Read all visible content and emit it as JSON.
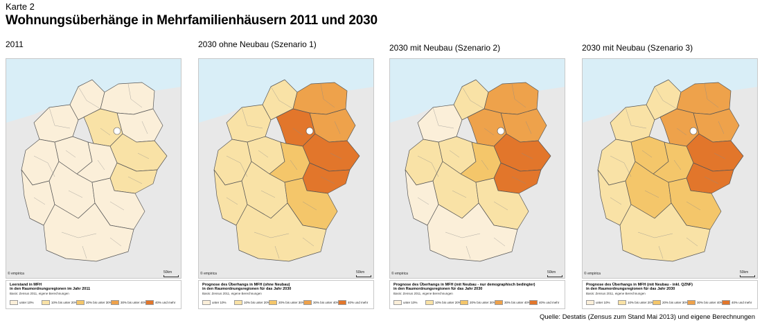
{
  "header": {
    "kicker": "Karte 2",
    "title": "Wohnungsüberhänge in Mehrfamilienhäusern 2011 und 2030"
  },
  "colors": {
    "sea": "#d9eef7",
    "neighbor": "#e6e6e6",
    "region_border": "#8a8a8a",
    "state_border": "#555555",
    "class_0": "#fbefd9",
    "class_1": "#f9e2a6",
    "class_2": "#f4c66a",
    "class_3": "#eea24b",
    "class_4": "#e2762b"
  },
  "legend_classes": [
    {
      "label": "unter 10%",
      "color": "#fbefd9"
    },
    {
      "label": "10% bis unter 20%",
      "color": "#f9e2a6"
    },
    {
      "label": "20% bis unter 30%",
      "color": "#f4c66a"
    },
    {
      "label": "30% bis unter 40%",
      "color": "#eea24b"
    },
    {
      "label": "40% und mehr",
      "color": "#e2762b"
    }
  ],
  "maps": [
    {
      "label": "2011",
      "credit": "© empirica",
      "scale": "50km",
      "legend_title_1": "Leerstand in MFH",
      "legend_title_2": "in den Raumordnungsregionen im Jahr 2011",
      "legend_basis": "Basis: Zensus 2011, eigene Berechnungen",
      "region_classes": {
        "north_west": 0,
        "north": 0,
        "north_east_coast": 0,
        "east_north": 0,
        "west": 0,
        "centre_west": 0,
        "berlin_area": 1,
        "east_centre": 1,
        "east_south": 1,
        "centre": 0,
        "south_west": 0,
        "south_centre": 0,
        "south_east": 0,
        "south": 0
      }
    },
    {
      "label": "2030 ohne Neubau (Szenario 1)",
      "credit": "© empirica",
      "scale": "50km",
      "legend_title_1": "Prognose des Überhangs in MFH (ohne Neubau)",
      "legend_title_2": "in den Raumordnungsregionen für das Jahr 2030",
      "legend_basis": "Basis: Zensus 2011, eigene Berechnungen",
      "region_classes": {
        "north_west": 1,
        "north": 1,
        "north_east_coast": 3,
        "east_north": 3,
        "west": 1,
        "centre_west": 1,
        "berlin_area": 4,
        "east_centre": 4,
        "east_south": 4,
        "centre": 2,
        "south_west": 1,
        "south_centre": 1,
        "south_east": 2,
        "south": 1
      }
    },
    {
      "label": "2030 mit Neubau (Szenario 2)",
      "credit": "© empirica",
      "scale": "50km",
      "legend_title_1": "Prognose des Überhangs in MFH (mit Neubau - nur demographisch bedingter)",
      "legend_title_2": "in den Raumordnungsregionen für das Jahr 2030",
      "legend_basis": "Basis: Zensus 2011, eigene Berechnungen",
      "region_classes": {
        "north_west": 0,
        "north": 1,
        "north_east_coast": 3,
        "east_north": 3,
        "west": 1,
        "centre_west": 1,
        "berlin_area": 3,
        "east_centre": 4,
        "east_south": 4,
        "centre": 2,
        "south_west": 0,
        "south_centre": 1,
        "south_east": 1,
        "south": 0
      }
    },
    {
      "label": "2030 mit Neubau (Szenario 3)",
      "credit": "© empirica",
      "scale": "50km",
      "legend_title_1": "Prognose des Überhangs in MFH (mit Neubau - inkl. QZNF)",
      "legend_title_2": "in den Raumordnungsregionen für das Jahr 2030",
      "legend_basis": "Basis: Zensus 2011, eigene Berechnungen",
      "region_classes": {
        "north_west": 1,
        "north": 1,
        "north_east_coast": 3,
        "east_north": 3,
        "west": 1,
        "centre_west": 2,
        "berlin_area": 3,
        "east_centre": 4,
        "east_south": 4,
        "centre": 2,
        "south_west": 1,
        "south_centre": 2,
        "south_east": 2,
        "south": 1
      }
    }
  ],
  "footer": {
    "source": "Quelle: Destatis (Zensus zum Stand Mai 2013) und eigene Berechnungen"
  }
}
